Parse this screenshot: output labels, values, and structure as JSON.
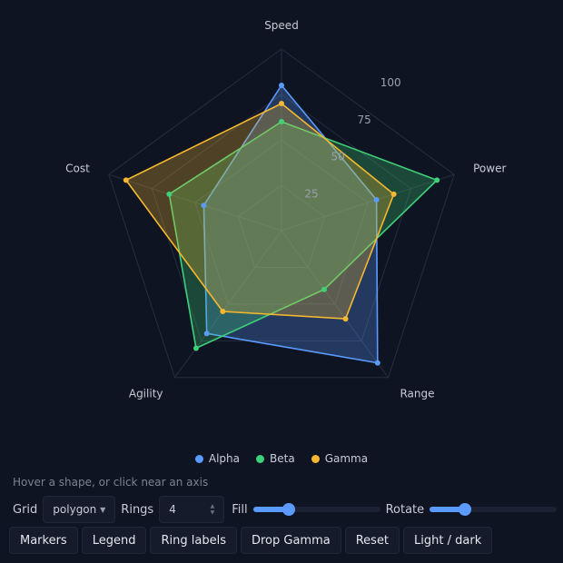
{
  "chart_data": {
    "type": "radar",
    "axes": [
      "Speed",
      "Power",
      "Range",
      "Agility",
      "Cost"
    ],
    "rlim": [
      0,
      100
    ],
    "ring_ticks": [
      25,
      50,
      75,
      100
    ],
    "grid": "polygon",
    "series": [
      {
        "name": "Alpha",
        "color": "#5b9bff",
        "values": [
          80,
          55,
          90,
          70,
          45
        ]
      },
      {
        "name": "Beta",
        "color": "#3fd07a",
        "values": [
          60,
          90,
          40,
          80,
          65
        ]
      },
      {
        "name": "Gamma",
        "color": "#f5b82e",
        "values": [
          70,
          65,
          60,
          55,
          90
        ]
      }
    ],
    "legend_position": "bottom"
  },
  "status_text": "Hover a shape, or click near an axis",
  "controls": {
    "grid_label": "Grid",
    "grid_value": "polygon",
    "rings_label": "Rings",
    "rings_value": "4",
    "fill_label": "Fill",
    "fill_value": 0.28,
    "rotate_label": "Rotate",
    "rotate_value": 0.28
  },
  "buttons": {
    "markers": "Markers",
    "legend": "Legend",
    "ring_labels": "Ring labels",
    "drop_gamma": "Drop Gamma",
    "reset": "Reset",
    "theme": "Light / dark"
  }
}
